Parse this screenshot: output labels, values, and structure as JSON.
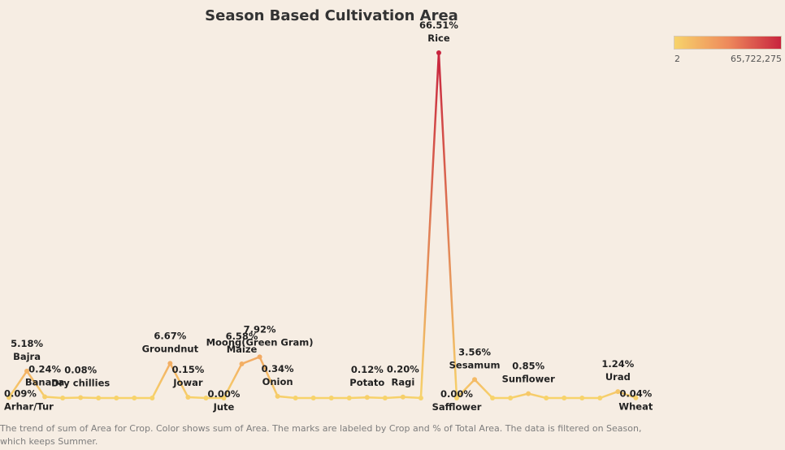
{
  "chart_data": {
    "type": "line",
    "title": "Season Based Cultivation Area",
    "categories": [
      "Arhar/Tur",
      "Bajra",
      "Banana",
      "",
      "Dry chillies",
      "",
      "",
      "",
      "",
      "Groundnut",
      "Jowar",
      "",
      "Jute",
      "Maize",
      "Moong(Green Gram)",
      "Onion",
      "",
      "",
      "",
      "",
      "Potato",
      "",
      "Ragi",
      "",
      "Rice",
      "Safflower",
      "Sesamum",
      "",
      "",
      "Sunflower",
      "",
      "",
      "",
      "",
      "Urad",
      "Wheat"
    ],
    "percent": [
      0.09,
      5.18,
      0.24,
      0,
      0.08,
      0,
      0,
      0,
      0,
      6.67,
      0.15,
      0,
      0.0,
      6.58,
      7.92,
      0.34,
      0,
      0,
      0,
      0,
      0.12,
      0,
      0.2,
      0,
      66.51,
      0.0,
      3.56,
      0,
      0,
      0.85,
      0,
      0,
      0,
      0,
      1.24,
      0.04
    ],
    "labels": [
      {
        "i": 0,
        "crop": "Arhar/Tur",
        "pct": "0.09%",
        "pos": "below"
      },
      {
        "i": 1,
        "crop": "Bajra",
        "pct": "5.18%",
        "pos": "above"
      },
      {
        "i": 2,
        "crop": "Banana",
        "pct": "0.24%",
        "pos": "above"
      },
      {
        "i": 4,
        "crop": "Dry chillies",
        "pct": "0.08%",
        "pos": "above"
      },
      {
        "i": 9,
        "crop": "Groundnut",
        "pct": "6.67%",
        "pos": "above"
      },
      {
        "i": 10,
        "crop": "Jowar",
        "pct": "0.15%",
        "pos": "above"
      },
      {
        "i": 12,
        "crop": "Jute",
        "pct": "0.00%",
        "pos": "below"
      },
      {
        "i": 13,
        "crop": "Maize",
        "pct": "6.58%",
        "pos": "above"
      },
      {
        "i": 14,
        "crop": "Moong(Green Gram)",
        "pct": "7.92%",
        "pos": "above"
      },
      {
        "i": 15,
        "crop": "Onion",
        "pct": "0.34%",
        "pos": "above"
      },
      {
        "i": 20,
        "crop": "Potato",
        "pct": "0.12%",
        "pos": "above"
      },
      {
        "i": 22,
        "crop": "Ragi",
        "pct": "0.20%",
        "pos": "above"
      },
      {
        "i": 24,
        "crop": "Rice",
        "pct": "66.51%",
        "pos": "above"
      },
      {
        "i": 25,
        "crop": "Safflower",
        "pct": "0.00%",
        "pos": "below"
      },
      {
        "i": 26,
        "crop": "Sesamum",
        "pct": "3.56%",
        "pos": "above"
      },
      {
        "i": 29,
        "crop": "Sunflower",
        "pct": "0.85%",
        "pos": "above"
      },
      {
        "i": 34,
        "crop": "Urad",
        "pct": "1.24%",
        "pos": "above"
      },
      {
        "i": 35,
        "crop": "Wheat",
        "pct": "0.04%",
        "pos": "below"
      }
    ],
    "color_legend": {
      "min_label": "2",
      "max_label": "65,722,275"
    },
    "colors": {
      "low": "#f7d36b",
      "mid": "#ee8a5c",
      "high": "#c8243e"
    },
    "measure": "sum of Area"
  },
  "caption": {
    "line1": "The trend of sum of Area for Crop.  Color shows sum of Area.  The marks are labeled by Crop and % of Total Area. The data is filtered on Season,",
    "line2": "which keeps Summer."
  }
}
